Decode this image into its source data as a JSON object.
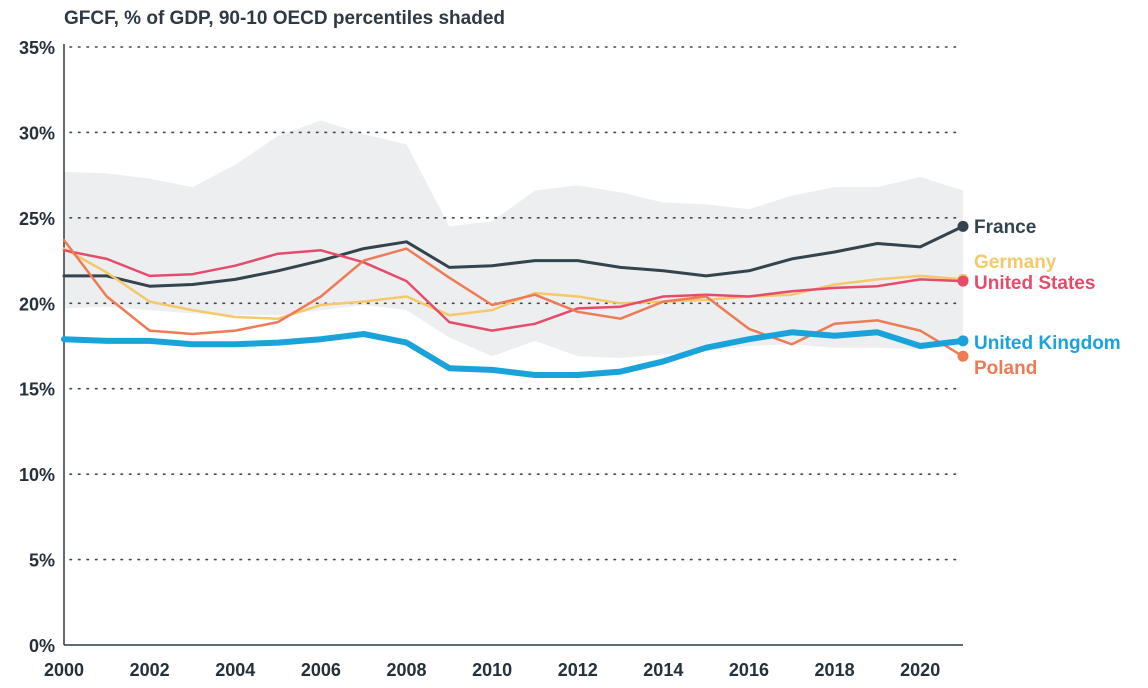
{
  "chart_data": {
    "type": "line",
    "title": "GFCF, % of GDP, 90-10 OECD percentiles shaded",
    "xlabel": "",
    "ylabel": "",
    "x": [
      2000,
      2001,
      2002,
      2003,
      2004,
      2005,
      2006,
      2007,
      2008,
      2009,
      2010,
      2011,
      2012,
      2013,
      2014,
      2015,
      2016,
      2017,
      2018,
      2019,
      2020,
      2021
    ],
    "ylim": [
      0,
      35
    ],
    "y_ticks": [
      0,
      5,
      10,
      15,
      20,
      25,
      30,
      35
    ],
    "y_tick_labels": [
      "0%",
      "5%",
      "10%",
      "15%",
      "20%",
      "25%",
      "30%",
      "35%"
    ],
    "x_ticks": [
      2000,
      2002,
      2004,
      2006,
      2008,
      2010,
      2012,
      2014,
      2016,
      2018,
      2020
    ],
    "x_tick_labels": [
      "2000",
      "2002",
      "2004",
      "2006",
      "2008",
      "2010",
      "2012",
      "2014",
      "2016",
      "2018",
      "2020"
    ],
    "grid": "horizontal dotted",
    "legend": "labels at line ends (right)",
    "band": {
      "upper": [
        27.7,
        27.6,
        27.3,
        26.8,
        28.1,
        29.8,
        30.7,
        29.9,
        29.3,
        24.5,
        24.8,
        26.6,
        26.9,
        26.5,
        25.9,
        25.8,
        25.5,
        26.3,
        26.8,
        26.8,
        27.4,
        26.6
      ],
      "lower": [
        19.7,
        19.8,
        19.6,
        19.4,
        19.3,
        19.3,
        19.6,
        19.9,
        19.6,
        18.0,
        16.9,
        17.8,
        16.9,
        16.8,
        17.0,
        17.2,
        17.5,
        17.6,
        17.4,
        17.4,
        17.3,
        17.6
      ],
      "color": "#eceef0"
    },
    "series": [
      {
        "name": "France",
        "color": "#34444f",
        "width": 3,
        "values": [
          21.6,
          21.6,
          21.0,
          21.1,
          21.4,
          21.9,
          22.5,
          23.2,
          23.6,
          22.1,
          22.2,
          22.5,
          22.5,
          22.1,
          21.9,
          21.6,
          21.9,
          22.6,
          23.0,
          23.5,
          23.3,
          24.5
        ]
      },
      {
        "name": "Germany",
        "color": "#f5c86a",
        "width": 2.5,
        "values": [
          23.2,
          21.8,
          20.1,
          19.6,
          19.2,
          19.1,
          19.9,
          20.1,
          20.4,
          19.3,
          19.6,
          20.6,
          20.4,
          20.0,
          20.1,
          20.2,
          20.4,
          20.5,
          21.1,
          21.4,
          21.6,
          21.4
        ]
      },
      {
        "name": "United States",
        "color": "#e64c6a",
        "width": 2.5,
        "values": [
          23.1,
          22.6,
          21.6,
          21.7,
          22.2,
          22.9,
          23.1,
          22.4,
          21.3,
          18.9,
          18.4,
          18.8,
          19.7,
          19.8,
          20.4,
          20.5,
          20.4,
          20.7,
          20.9,
          21.0,
          21.4,
          21.3
        ]
      },
      {
        "name": "Poland",
        "color": "#ed7b55",
        "width": 2.5,
        "values": [
          23.7,
          20.4,
          18.4,
          18.2,
          18.4,
          18.9,
          20.4,
          22.5,
          23.2,
          21.5,
          19.9,
          20.5,
          19.5,
          19.1,
          20.1,
          20.4,
          18.5,
          17.6,
          18.8,
          19.0,
          18.4,
          16.9
        ]
      },
      {
        "name": "United Kingdom",
        "color": "#1aa3db",
        "width": 6,
        "values": [
          17.9,
          17.8,
          17.8,
          17.6,
          17.6,
          17.7,
          17.9,
          18.2,
          17.7,
          16.2,
          16.1,
          15.8,
          15.8,
          16.0,
          16.6,
          17.4,
          17.9,
          18.3,
          18.1,
          18.3,
          17.5,
          17.8
        ]
      }
    ]
  }
}
